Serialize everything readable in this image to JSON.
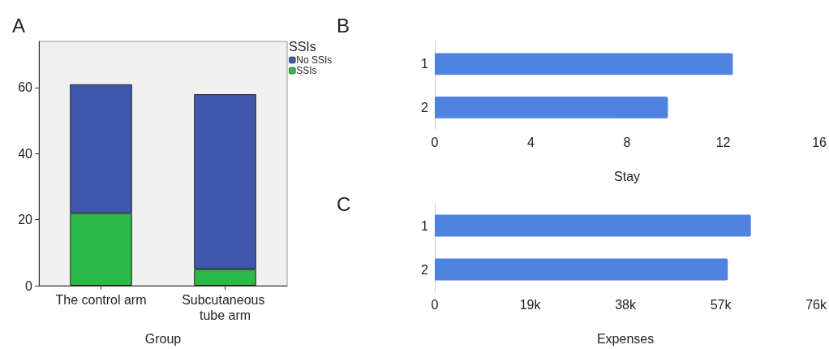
{
  "chart_data": [
    {
      "type": "bar",
      "title": "A",
      "categories": [
        "The control arm",
        "Subcutaneous tube arm"
      ],
      "xlabel": "Group",
      "stacked": true,
      "legend_title": "SSIs",
      "legend": "top right",
      "grid": false,
      "ylim": [
        0,
        74
      ],
      "yticks": [
        0,
        20,
        40,
        60
      ],
      "series": [
        {
          "name": "SSIs",
          "color": "#2db84a",
          "values": [
            22,
            5
          ]
        },
        {
          "name": "No SSIs",
          "color": "#3f58ad",
          "values": [
            39,
            53
          ]
        }
      ]
    },
    {
      "type": "bar",
      "title": "B",
      "orientation": "horizontal",
      "categories": [
        "1",
        "2"
      ],
      "values": [
        12.4,
        9.7
      ],
      "color": "#5082e2",
      "xlabel": "Stay",
      "grid": false,
      "xlim": [
        0,
        16
      ],
      "xticks": [
        0,
        4,
        8,
        12,
        16
      ]
    },
    {
      "type": "bar",
      "title": "C",
      "orientation": "horizontal",
      "categories": [
        "1",
        "2"
      ],
      "values": [
        63000,
        58400
      ],
      "color": "#5082e2",
      "xlabel": "Expenses",
      "grid": false,
      "xlim": [
        0,
        76000
      ],
      "xticks": [
        0,
        {
          "value": 19000,
          "label": "19k"
        },
        {
          "value": 38000,
          "label": "38k"
        },
        {
          "value": 57000,
          "label": "57k"
        },
        {
          "value": 76000,
          "label": "76k"
        }
      ]
    }
  ]
}
